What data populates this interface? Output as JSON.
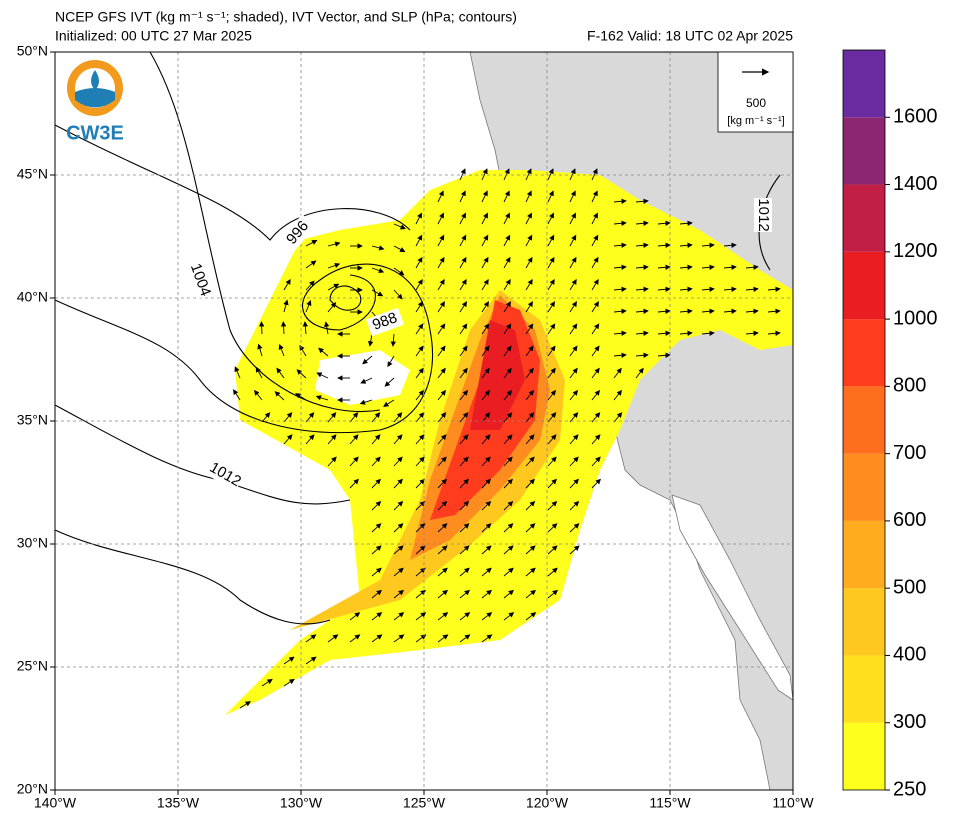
{
  "chart_data": {
    "type": "map",
    "title": "NCEP GFS IVT (kg m⁻¹ s⁻¹; shaded), IVT Vector, and SLP (hPa; contours)",
    "subtitle_left": "Initialized: 00 UTC 27 Mar 2025",
    "subtitle_right": "F-162  Valid: 18 UTC 02 Apr 2025",
    "logo": "CW3E",
    "xlim": [
      -140,
      -110
    ],
    "ylim": [
      20,
      50
    ],
    "xticks": [
      {
        "value": -140,
        "label": "140°W"
      },
      {
        "value": -135,
        "label": "135°W"
      },
      {
        "value": -130,
        "label": "130°W"
      },
      {
        "value": -125,
        "label": "125°W"
      },
      {
        "value": -120,
        "label": "120°W"
      },
      {
        "value": -115,
        "label": "115°W"
      },
      {
        "value": -110,
        "label": "110°W"
      }
    ],
    "yticks": [
      {
        "value": 20,
        "label": "20°N"
      },
      {
        "value": 25,
        "label": "25°N"
      },
      {
        "value": 30,
        "label": "30°N"
      },
      {
        "value": 35,
        "label": "35°N"
      },
      {
        "value": 40,
        "label": "40°N"
      },
      {
        "value": 45,
        "label": "45°N"
      },
      {
        "value": 50,
        "label": "50°N"
      }
    ],
    "grid": true,
    "reference_vector": {
      "value": 500,
      "unit": "[kg m⁻¹ s⁻¹]"
    },
    "contour_labels": [
      996,
      1004,
      988,
      1012,
      1012
    ],
    "colorbar": {
      "levels": [
        250,
        300,
        400,
        500,
        600,
        700,
        800,
        1000,
        1200,
        1400,
        1600
      ],
      "colors": [
        "#ffff1e",
        "#ffe01e",
        "#ffc81e",
        "#ffac1e",
        "#ff8c1e",
        "#ff6e1e",
        "#ff3c1e",
        "#ea1e22",
        "#c21e46",
        "#8e2570",
        "#6a2aa0"
      ]
    }
  }
}
